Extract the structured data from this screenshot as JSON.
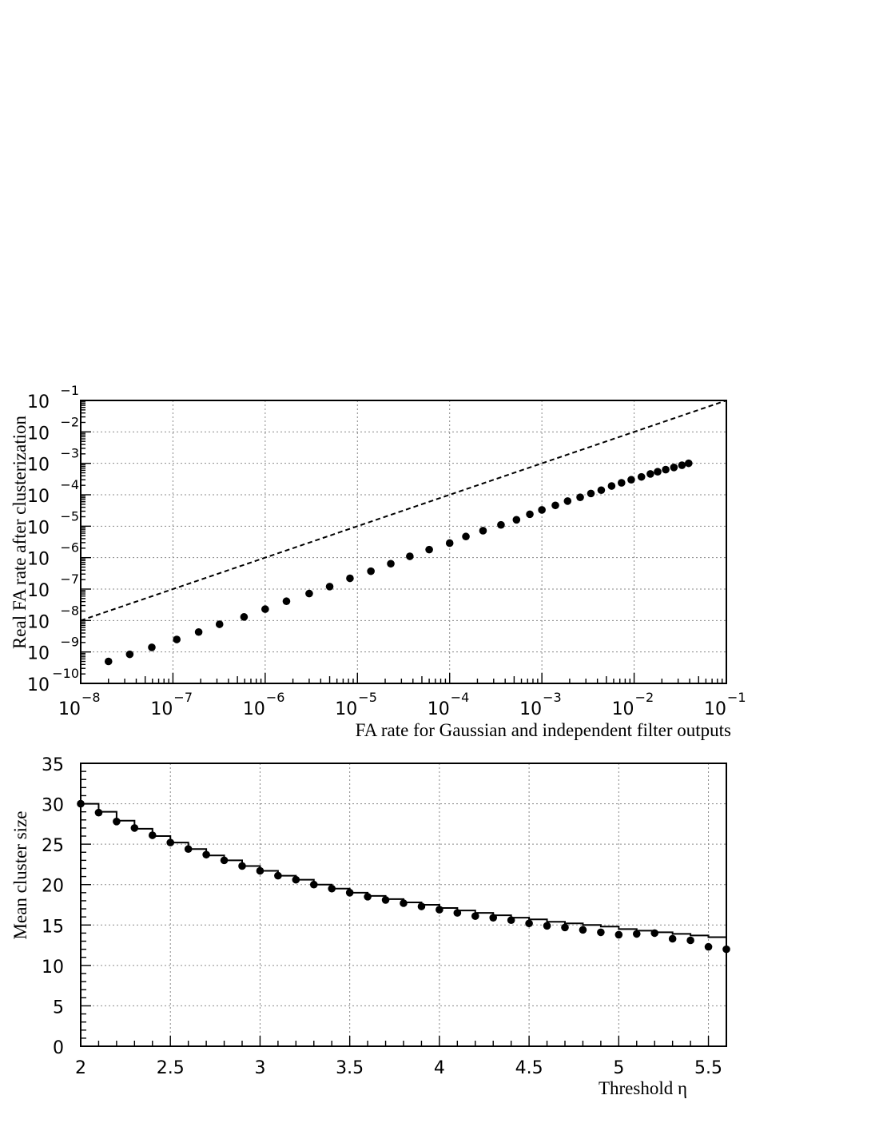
{
  "chart_data": [
    {
      "type": "scatter",
      "title": "",
      "xlabel": "FA rate for Gaussian and independent filter outputs",
      "ylabel": "Real FA rate after clusterization",
      "x_scale": "log",
      "y_scale": "log",
      "xlim": [
        1e-08,
        0.1
      ],
      "ylim": [
        1e-10,
        0.1
      ],
      "grid": true,
      "x_ticks": [
        {
          "base": "10",
          "exp": "−8"
        },
        {
          "base": "10",
          "exp": "−7"
        },
        {
          "base": "10",
          "exp": "−6"
        },
        {
          "base": "10",
          "exp": "−5"
        },
        {
          "base": "10",
          "exp": "−4"
        },
        {
          "base": "10",
          "exp": "−3"
        },
        {
          "base": "10",
          "exp": "−2"
        },
        {
          "base": "10",
          "exp": "−1"
        }
      ],
      "y_ticks": [
        {
          "base": "10",
          "exp": "−10"
        },
        {
          "base": "10",
          "exp": "−9"
        },
        {
          "base": "10",
          "exp": "−8"
        },
        {
          "base": "10",
          "exp": "−7"
        },
        {
          "base": "10",
          "exp": "−6"
        },
        {
          "base": "10",
          "exp": "−5"
        },
        {
          "base": "10",
          "exp": "−4"
        },
        {
          "base": "10",
          "exp": "−3"
        },
        {
          "base": "10",
          "exp": "−2"
        },
        {
          "base": "10",
          "exp": "−1"
        }
      ],
      "series": [
        {
          "style": "markers",
          "x": [
            2e-08,
            3.4e-08,
            5.9e-08,
            1.1e-07,
            1.9e-07,
            3.2e-07,
            5.9e-07,
            1e-06,
            1.7e-06,
            3e-06,
            5e-06,
            8.3e-06,
            1.4e-05,
            2.3e-05,
            3.7e-05,
            6e-05,
            0.0001,
            0.00015,
            0.00023,
            0.00036,
            0.00053,
            0.00074,
            0.001,
            0.0014,
            0.0019,
            0.0026,
            0.0034,
            0.0044,
            0.0057,
            0.0073,
            0.0093,
            0.012,
            0.015,
            0.018,
            0.022,
            0.027,
            0.033,
            0.039
          ],
          "y": [
            5e-10,
            8.4e-10,
            1.4e-09,
            2.5e-09,
            4.3e-09,
            7.6e-09,
            1.3e-08,
            2.3e-08,
            4.1e-08,
            7.2e-08,
            1.2e-07,
            2.2e-07,
            3.7e-07,
            6.4e-07,
            1.1e-06,
            1.8e-06,
            2.9e-06,
            4.7e-06,
            7.2e-06,
            1.1e-05,
            1.6e-05,
            2.4e-05,
            3.3e-05,
            4.6e-05,
            6.3e-05,
            8.3e-05,
            0.00011,
            0.00014,
            0.00019,
            0.00024,
            0.0003,
            0.00037,
            0.00046,
            0.00054,
            0.00063,
            0.00074,
            0.00087,
            0.001
          ]
        },
        {
          "style": "dashed-line",
          "x": [
            1e-08,
            0.1
          ],
          "y": [
            1e-08,
            0.1
          ]
        }
      ]
    },
    {
      "type": "scatter",
      "title": "",
      "xlabel": "Threshold η",
      "ylabel": "Mean cluster size",
      "xlim": [
        2,
        5.6
      ],
      "ylim": [
        0,
        35
      ],
      "grid": true,
      "x_ticks": [
        "2",
        "2.5",
        "3",
        "3.5",
        "4",
        "4.5",
        "5",
        "5.5"
      ],
      "y_ticks": [
        "0",
        "5",
        "10",
        "15",
        "20",
        "25",
        "30",
        "35"
      ],
      "series": [
        {
          "style": "markers",
          "x": [
            2.0,
            2.1,
            2.2,
            2.3,
            2.4,
            2.5,
            2.6,
            2.7,
            2.8,
            2.9,
            3.0,
            3.1,
            3.2,
            3.3,
            3.4,
            3.5,
            3.6,
            3.7,
            3.8,
            3.9,
            4.0,
            4.1,
            4.2,
            4.3,
            4.4,
            4.5,
            4.6,
            4.7,
            4.8,
            4.9,
            5.0,
            5.1,
            5.2,
            5.3,
            5.4,
            5.5,
            5.6
          ],
          "y": [
            30.0,
            28.9,
            27.8,
            27.0,
            26.1,
            25.2,
            24.4,
            23.7,
            23.0,
            22.3,
            21.7,
            21.1,
            20.6,
            20.0,
            19.5,
            19.0,
            18.5,
            18.1,
            17.7,
            17.3,
            16.9,
            16.5,
            16.1,
            15.9,
            15.6,
            15.2,
            14.9,
            14.7,
            14.4,
            14.1,
            13.8,
            13.9,
            14.0,
            13.3,
            13.1,
            12.3,
            12.0
          ]
        },
        {
          "style": "step-line",
          "x": [
            2.0,
            2.1,
            2.2,
            2.3,
            2.4,
            2.5,
            2.6,
            2.7,
            2.8,
            2.9,
            3.0,
            3.1,
            3.2,
            3.3,
            3.4,
            3.5,
            3.6,
            3.7,
            3.8,
            3.9,
            4.0,
            4.1,
            4.2,
            4.3,
            4.4,
            4.5,
            4.6,
            4.7,
            4.8,
            4.9,
            5.0,
            5.1,
            5.2,
            5.3,
            5.4,
            5.5
          ],
          "y": [
            30.0,
            29.0,
            27.9,
            26.9,
            26.0,
            25.2,
            24.4,
            23.6,
            23.0,
            22.3,
            21.7,
            21.1,
            20.6,
            20.0,
            19.5,
            19.0,
            18.6,
            18.2,
            17.8,
            17.5,
            17.1,
            16.8,
            16.5,
            16.2,
            15.9,
            15.7,
            15.4,
            15.2,
            15.0,
            14.8,
            14.5,
            14.3,
            14.1,
            13.9,
            13.7,
            13.5
          ]
        }
      ]
    }
  ]
}
